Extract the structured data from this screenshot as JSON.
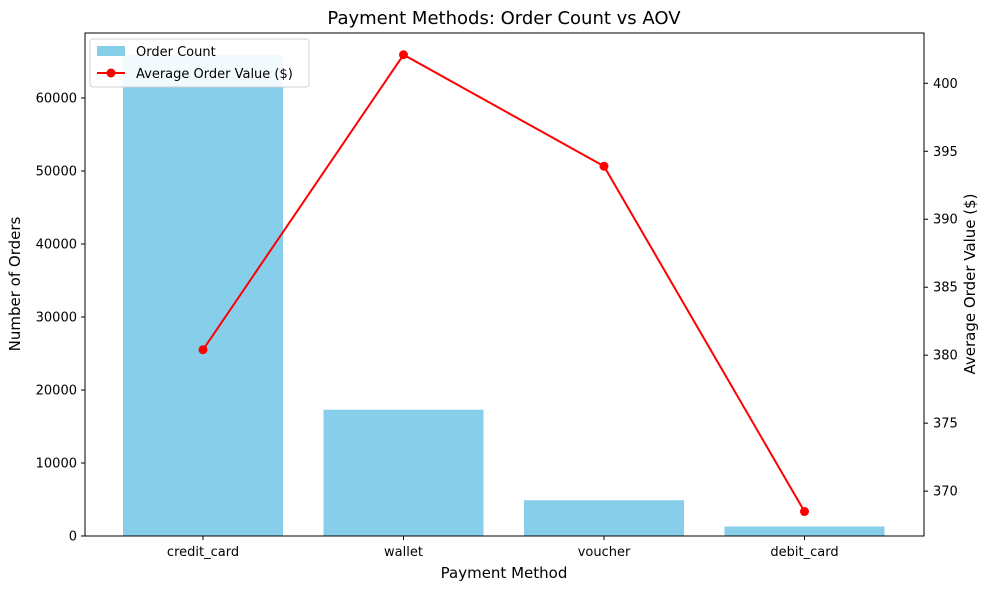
{
  "chart_data": {
    "type": "bar",
    "title": "Payment Methods: Order Count vs AOV",
    "xlabel": "Payment Method",
    "ylabel": "Number of Orders",
    "y2label": "Average Order Value ($)",
    "categories": [
      "credit_card",
      "wallet",
      "voucher",
      "debit_card"
    ],
    "series": [
      {
        "name": "Order Count",
        "type": "bar",
        "axis": "left",
        "color": "#87CEEB",
        "values": [
          65900,
          17300,
          4900,
          1300
        ]
      },
      {
        "name": "Average Order Value ($)",
        "type": "line",
        "axis": "right",
        "color": "#FF0000",
        "marker": "circle",
        "values": [
          380.4,
          402.1,
          393.9,
          368.5
        ]
      }
    ],
    "ylim": [
      0,
      68900
    ],
    "y2lim": [
      366.7,
      403.7
    ],
    "yticks": [
      0,
      10000,
      20000,
      30000,
      40000,
      50000,
      60000
    ],
    "y2ticks": [
      370,
      375,
      380,
      385,
      390,
      395,
      400
    ],
    "grid": false,
    "legend_position": "top-left"
  }
}
